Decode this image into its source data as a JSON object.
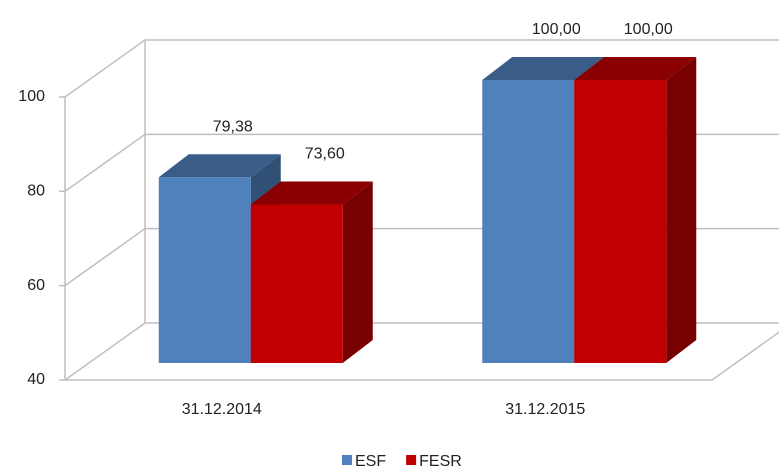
{
  "chart_data": {
    "type": "bar3d",
    "categories": [
      "31.12.2014",
      "31.12.2015"
    ],
    "series": [
      {
        "name": "ESF",
        "color": "#4f81bd",
        "values": [
          79.38,
          100
        ],
        "value_labels": [
          "79,38",
          "100,00"
        ]
      },
      {
        "name": "FESR",
        "color": "#c00000",
        "values": [
          73.6,
          100
        ],
        "value_labels": [
          "73,60",
          "100,00"
        ]
      }
    ],
    "ylim": [
      40,
      100
    ],
    "yticks": [
      40,
      60,
      80,
      100
    ],
    "grid": true,
    "legend": "bottom"
  }
}
